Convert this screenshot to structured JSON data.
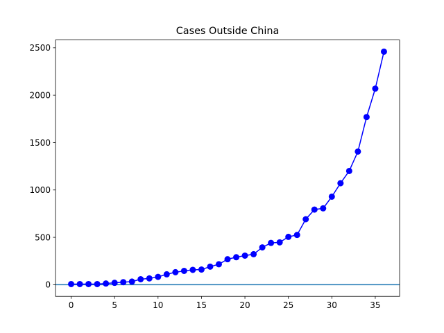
{
  "chart_data": {
    "type": "line",
    "title": "Cases Outside China",
    "xlabel": "",
    "ylabel": "",
    "xlim": [
      -1.8,
      37.8
    ],
    "ylim": [
      -122.9,
      2582.4
    ],
    "x_ticks": [
      0,
      5,
      10,
      15,
      20,
      25,
      30,
      35
    ],
    "y_ticks": [
      0,
      500,
      1000,
      1500,
      2000,
      2500
    ],
    "grid": false,
    "legend": "none",
    "series": [
      {
        "color": "#0000ff",
        "marker": "circle",
        "x": [
          0,
          1,
          2,
          3,
          4,
          5,
          6,
          7,
          8,
          9,
          10,
          11,
          12,
          13,
          14,
          15,
          16,
          17,
          18,
          19,
          20,
          21,
          22,
          23,
          24,
          25,
          26,
          27,
          28,
          29,
          30,
          31,
          32,
          33,
          34,
          35,
          36
        ],
        "y": [
          7,
          7,
          7,
          7,
          13,
          20,
          27,
          33,
          58,
          67,
          83,
          110,
          132,
          146,
          157,
          160,
          191,
          216,
          269,
          290,
          307,
          322,
          394,
          441,
          447,
          505,
          525,
          691,
          793,
          806,
          929,
          1071,
          1200,
          1405,
          1769,
          2069,
          2459
        ]
      }
    ],
    "reference_lines": [
      {
        "orientation": "horizontal",
        "y": 0,
        "color": "#1f77b4"
      }
    ]
  }
}
